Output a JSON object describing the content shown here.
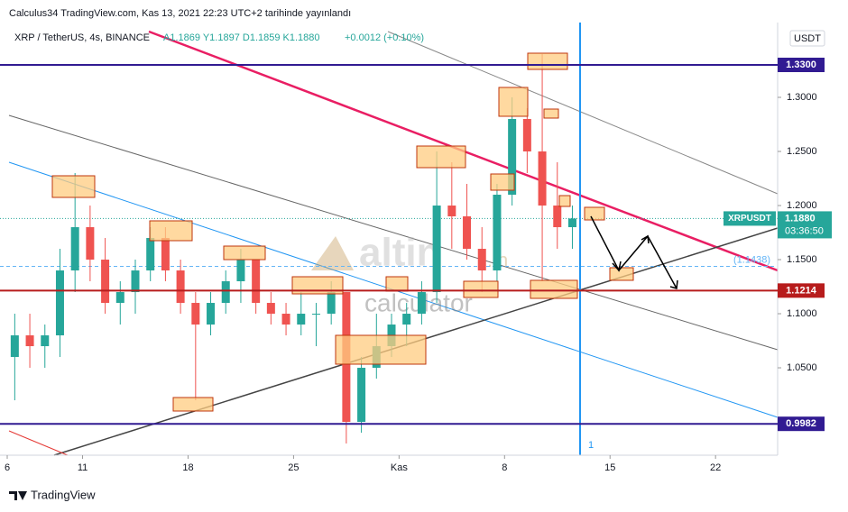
{
  "header": {
    "published": "Calculus34 TradingView.com, Kas 13, 2021 22:23 UTC+2 tarihinde yayınlandı",
    "symbol": "XRP / TetherUS, 4s, BINANCE",
    "ohlc": "A1.1869  Y1.1897  D1.1859  K1.1880",
    "change": "+0.0012 (+0.10%)"
  },
  "footer": {
    "brand": "TradingView"
  },
  "watermark": {
    "logo": "altin",
    "suffix": ".in",
    "sub": "calculator"
  },
  "chart_data": {
    "type": "candlestick",
    "currency": "USDT",
    "x": [
      0.5,
      1.5,
      2.5,
      3.5,
      4.5,
      5.5,
      6.5,
      7.5,
      8.5,
      9.5,
      10.5,
      11.5,
      12.5,
      13.5,
      14.5,
      15.5,
      16.5,
      17.5,
      18.5,
      19.5,
      20.5,
      21.5,
      22.5,
      23.5,
      24.5,
      25.5,
      26.5,
      27.5,
      28.5,
      29.5,
      30.5,
      31.5,
      32.5,
      33.5,
      34.5,
      35.5,
      36.5,
      37.5
    ],
    "open": [
      1.06,
      1.08,
      1.07,
      1.08,
      1.14,
      1.18,
      1.15,
      1.11,
      1.12,
      1.14,
      1.17,
      1.14,
      1.11,
      1.09,
      1.11,
      1.13,
      1.15,
      1.11,
      1.1,
      1.09,
      1.1,
      1.1,
      1.12,
      1.0,
      1.05,
      1.07,
      1.09,
      1.1,
      1.12,
      1.2,
      1.19,
      1.16,
      1.14,
      1.21,
      1.28,
      1.25,
      1.2,
      1.18
    ],
    "high": [
      1.1,
      1.1,
      1.09,
      1.16,
      1.23,
      1.2,
      1.17,
      1.13,
      1.15,
      1.18,
      1.18,
      1.15,
      1.12,
      1.12,
      1.14,
      1.16,
      1.15,
      1.12,
      1.11,
      1.12,
      1.11,
      1.13,
      1.12,
      1.06,
      1.1,
      1.1,
      1.11,
      1.13,
      1.25,
      1.24,
      1.22,
      1.18,
      1.22,
      1.3,
      1.29,
      1.34,
      1.24,
      1.2
    ],
    "low": [
      1.02,
      1.05,
      1.05,
      1.06,
      1.12,
      1.13,
      1.1,
      1.09,
      1.1,
      1.13,
      1.13,
      1.1,
      1.02,
      1.08,
      1.1,
      1.11,
      1.1,
      1.09,
      1.08,
      1.08,
      1.07,
      1.09,
      0.98,
      0.99,
      1.04,
      1.06,
      1.07,
      1.09,
      1.11,
      1.16,
      1.15,
      1.12,
      1.13,
      1.2,
      1.23,
      1.13,
      1.16,
      1.16
    ],
    "close": [
      1.08,
      1.07,
      1.08,
      1.14,
      1.18,
      1.15,
      1.11,
      1.12,
      1.14,
      1.17,
      1.14,
      1.11,
      1.09,
      1.11,
      1.13,
      1.15,
      1.11,
      1.1,
      1.09,
      1.1,
      1.1,
      1.12,
      1.0,
      1.05,
      1.07,
      1.09,
      1.1,
      1.12,
      1.2,
      1.19,
      1.16,
      1.14,
      1.21,
      1.28,
      1.25,
      1.2,
      1.18,
      1.188
    ],
    "up_color": "#26a69a",
    "down_color": "#ef5350",
    "xlim": [
      0,
      51
    ],
    "xticks": [
      {
        "value": 0,
        "label": "6"
      },
      {
        "value": 5,
        "label": "11"
      },
      {
        "value": 12,
        "label": "18"
      },
      {
        "value": 19,
        "label": "25"
      },
      {
        "value": 26,
        "label": "Kas"
      },
      {
        "value": 33,
        "label": "8"
      },
      {
        "value": 40,
        "label": "15"
      },
      {
        "value": 47,
        "label": "22"
      }
    ],
    "ylim": [
      0.9692,
      1.365
    ],
    "yticks": [
      {
        "value": 1.3,
        "label": "1.3000"
      },
      {
        "value": 1.25,
        "label": "1.2500"
      },
      {
        "value": 1.2,
        "label": "1.2000"
      },
      {
        "value": 1.15,
        "label": "1.1500"
      },
      {
        "value": 1.1,
        "label": "1.1000"
      },
      {
        "value": 1.05,
        "label": "1.0500"
      }
    ],
    "levels": [
      {
        "value": 1.33,
        "label": "1.3300",
        "color": "#311b92"
      },
      {
        "value": 1.1214,
        "label": "1.1214",
        "color": "#b71c1c"
      },
      {
        "value": 0.9982,
        "label": "0.9982",
        "color": "#311b92"
      }
    ],
    "last": {
      "name": "XRPUSDT",
      "value": 1.188,
      "label": "1.1880",
      "countdown": "03:36:50",
      "color": "#26a69a"
    },
    "marker": {
      "value": 1.1438,
      "label": "(1.1438)"
    },
    "vline_label": "1"
  }
}
